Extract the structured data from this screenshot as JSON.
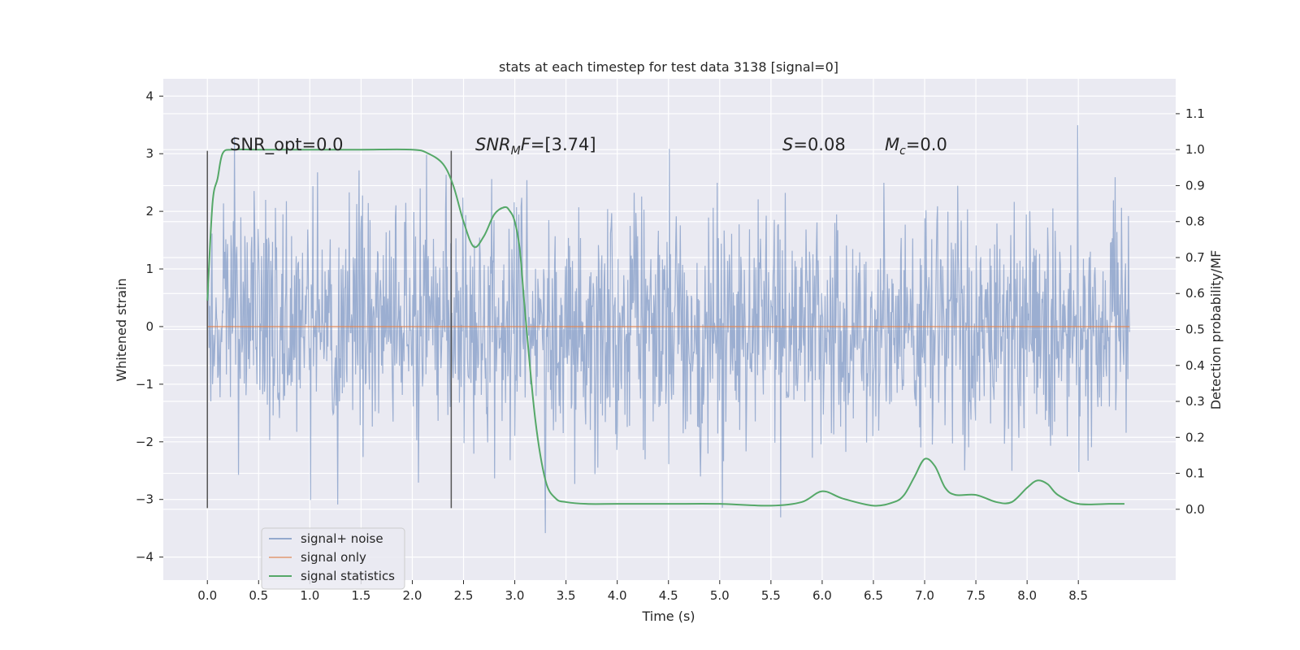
{
  "chart_data": {
    "type": "line",
    "title": "stats at each timestep for test data 3138 [signal=0]",
    "xlabel": "Time (s)",
    "ylabel": "Whitened strain",
    "y2label": "Detection probability/MF",
    "xlim": [
      -0.43,
      9.45
    ],
    "ylim": [
      -4.4,
      4.3
    ],
    "y2lim": [
      -0.197,
      1.197
    ],
    "xticks": [
      0.0,
      0.5,
      1.0,
      1.5,
      2.0,
      2.5,
      3.0,
      3.5,
      4.0,
      4.5,
      5.0,
      5.5,
      6.0,
      6.5,
      7.0,
      7.5,
      8.0,
      8.5
    ],
    "xtick_labels": [
      "0.0",
      "0.5",
      "1.0",
      "1.5",
      "2.0",
      "2.5",
      "3.0",
      "3.5",
      "4.0",
      "4.5",
      "5.0",
      "5.5",
      "6.0",
      "6.5",
      "7.0",
      "7.5",
      "8.0",
      "8.5"
    ],
    "yticks": [
      -4,
      -3,
      -2,
      -1,
      0,
      1,
      2,
      3,
      4
    ],
    "ytick_labels": [
      "−4",
      "−3",
      "−2",
      "−1",
      "0",
      "1",
      "2",
      "3",
      "4"
    ],
    "y2ticks": [
      0.0,
      0.1,
      0.2,
      0.3,
      0.4,
      0.5,
      0.6,
      0.7,
      0.8,
      0.9,
      1.0,
      1.1
    ],
    "y2tick_labels": [
      "0.0",
      "0.1",
      "0.2",
      "0.3",
      "0.4",
      "0.5",
      "0.6",
      "0.7",
      "0.8",
      "0.9",
      "1.0",
      "1.1"
    ],
    "grid": true,
    "legend_position": "lower-left",
    "legend": [
      "signal+ noise",
      "signal only",
      "signal statistics"
    ],
    "colors": {
      "noise": "#4c72b0",
      "signal": "#dd8452",
      "stats": "#55a868",
      "vline": "#555555",
      "background": "#eaeaf2",
      "grid": "#ffffff"
    },
    "annotations": {
      "snr_opt": "SNR_opt=0.0",
      "snr_mf_main": "SNR",
      "snr_mf_sub": "M",
      "snr_mf_tail": "F",
      "snr_mf_value": "=[3.74]",
      "s_main": "S",
      "s_value": "=0.08",
      "mc_main": "M",
      "mc_sub": "c",
      "mc_value": "=0.0"
    },
    "vertical_lines": [
      {
        "x": 0.0,
        "y": [
          -3.15,
          3.05
        ]
      },
      {
        "x": 2.38,
        "y": [
          -3.15,
          3.05
        ]
      }
    ],
    "series": [
      {
        "name": "signal+ noise",
        "axis": "left",
        "x_range": [
          0.0,
          9.0
        ],
        "samples": 1600,
        "seed": 3138,
        "std": 1.0,
        "approx_min": -4.0,
        "approx_max": 3.9
      },
      {
        "name": "signal only",
        "axis": "left",
        "x": [
          0.0,
          9.0
        ],
        "y": [
          0.0,
          0.0
        ]
      },
      {
        "name": "signal statistics",
        "axis": "right",
        "x": [
          0.0,
          0.05,
          0.1,
          0.15,
          0.25,
          0.5,
          1.0,
          1.5,
          2.0,
          2.15,
          2.3,
          2.4,
          2.5,
          2.6,
          2.7,
          2.8,
          2.9,
          2.95,
          3.0,
          3.05,
          3.1,
          3.2,
          3.3,
          3.4,
          3.5,
          3.7,
          4.0,
          4.5,
          5.0,
          5.5,
          5.8,
          6.0,
          6.2,
          6.5,
          6.7,
          6.8,
          6.9,
          7.0,
          7.1,
          7.2,
          7.3,
          7.5,
          7.7,
          7.85,
          8.0,
          8.1,
          8.2,
          8.3,
          8.5,
          8.8,
          8.95
        ],
        "y": [
          0.58,
          0.85,
          0.92,
          0.99,
          1.0,
          1.0,
          1.0,
          1.0,
          1.0,
          0.99,
          0.96,
          0.9,
          0.8,
          0.73,
          0.76,
          0.82,
          0.84,
          0.83,
          0.8,
          0.72,
          0.55,
          0.25,
          0.08,
          0.03,
          0.02,
          0.015,
          0.015,
          0.015,
          0.015,
          0.01,
          0.02,
          0.05,
          0.03,
          0.01,
          0.02,
          0.04,
          0.09,
          0.14,
          0.12,
          0.06,
          0.04,
          0.04,
          0.02,
          0.02,
          0.06,
          0.08,
          0.07,
          0.04,
          0.015,
          0.015,
          0.015
        ]
      }
    ]
  }
}
